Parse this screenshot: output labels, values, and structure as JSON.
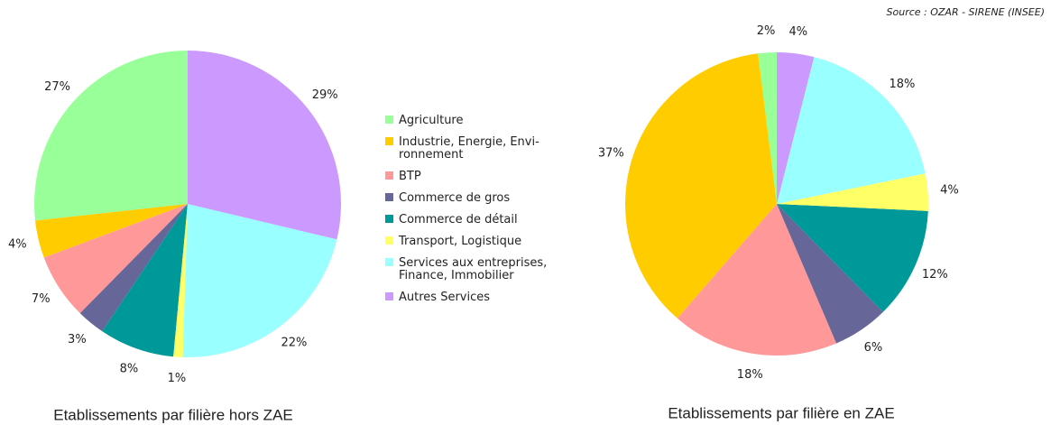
{
  "source": "Source : OZAR - SIRENE (INSEE)",
  "legend": {
    "categories": [
      "Agriculture",
      "Industrie, Energie, Envi-\nronnement",
      "BTP",
      "Commerce de gros",
      "Commerce de détail",
      "Transport, Logistique",
      "Services aux entreprises,\nFinance, Immobilier",
      "Autres Services"
    ],
    "colors": [
      "#99ff99",
      "#ffcc00",
      "#ff9999",
      "#666699",
      "#009999",
      "#ffff66",
      "#99ffff",
      "#cc99ff"
    ]
  },
  "chart_data": [
    {
      "type": "pie",
      "title": "Etablissements par filière hors ZAE",
      "values": [
        27,
        4,
        7,
        3,
        8,
        1,
        22,
        29
      ],
      "value_labels": [
        "27%",
        "4%",
        "7%",
        "3%",
        "8%",
        "1%",
        "22%",
        "29%"
      ]
    },
    {
      "type": "pie",
      "title": "Etablissements par filière en ZAE",
      "values": [
        2,
        37,
        18,
        6,
        12,
        4,
        18,
        4
      ],
      "value_labels": [
        "2%",
        "37%",
        "18%",
        "6%",
        "12%",
        "4%",
        "18%",
        "4%"
      ]
    }
  ]
}
